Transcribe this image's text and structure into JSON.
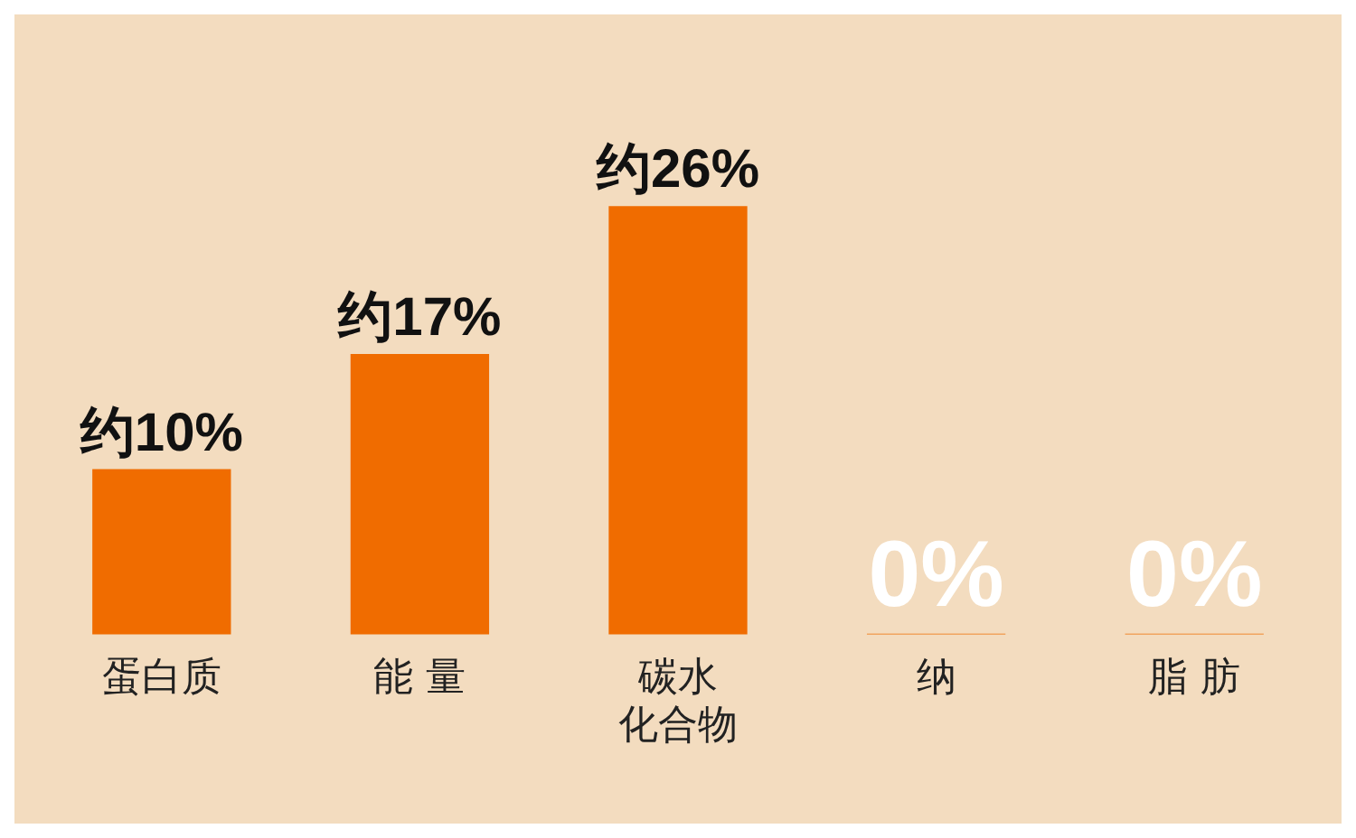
{
  "chart_data": {
    "type": "bar",
    "categories": [
      "蛋白质",
      "能 量",
      "碳水化合物",
      "纳",
      "脂 肪"
    ],
    "values": [
      10,
      17,
      26,
      0,
      0
    ],
    "value_labels": [
      "约10%",
      "约17%",
      "约26%",
      "0%",
      "0%"
    ],
    "color": "#f06c00",
    "grid": false,
    "legend": false
  }
}
